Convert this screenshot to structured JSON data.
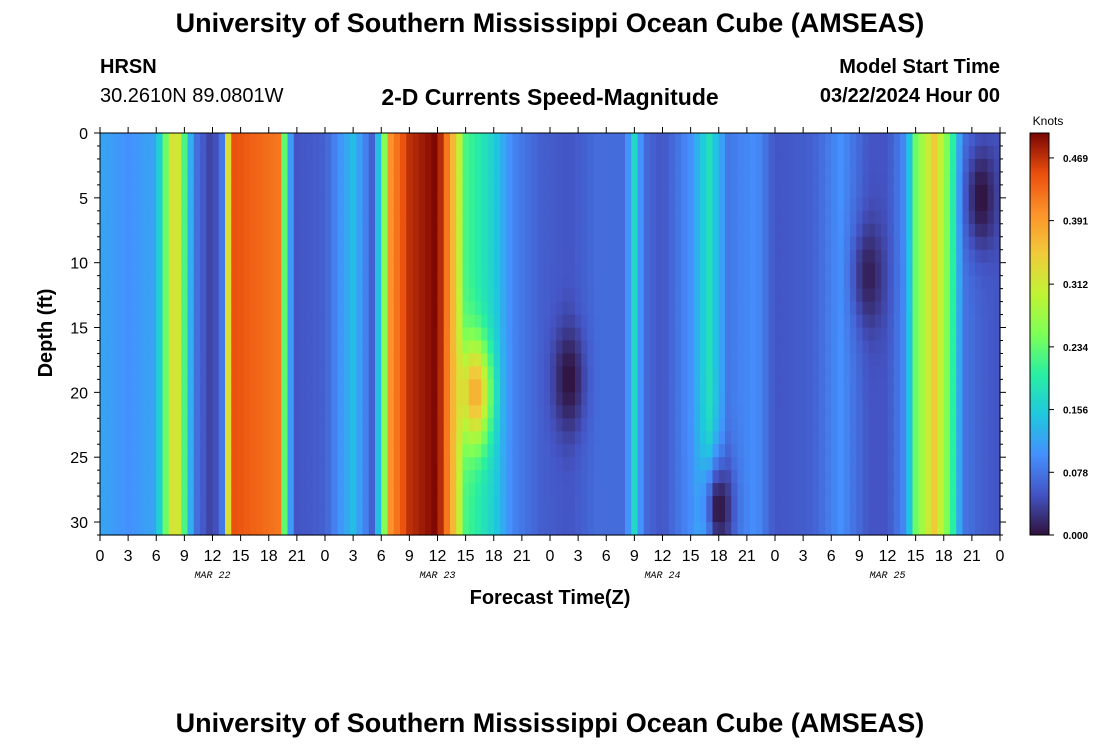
{
  "header": {
    "title": "University of Southern Mississippi Ocean Cube (AMSEAS)",
    "station": "HRSN",
    "coordinates": "30.2610N  89.0801W",
    "plot_title": "2-D Currents Speed-Magnitude",
    "model_start_label": "Model Start Time",
    "model_start_value": "03/22/2024 Hour 00"
  },
  "footer": {
    "title": "University of Southern Mississippi Ocean Cube (AMSEAS)"
  },
  "chart_data": {
    "type": "heatmap",
    "title": "2-D Currents Speed-Magnitude",
    "xlabel": "Forecast Time(Z)",
    "ylabel": "Depth (ft)",
    "x_ticks": [
      "0",
      "3",
      "6",
      "9",
      "12",
      "15",
      "18",
      "21",
      "0",
      "3",
      "6",
      "9",
      "12",
      "15",
      "18",
      "21",
      "0",
      "3",
      "6",
      "9",
      "12",
      "15",
      "18",
      "21",
      "0",
      "3",
      "6",
      "9",
      "12",
      "15",
      "18",
      "21",
      "0"
    ],
    "day_labels": [
      {
        "label": "MAR 22",
        "hour": 12
      },
      {
        "label": "MAR 23",
        "hour": 36
      },
      {
        "label": "MAR 24",
        "hour": 60
      },
      {
        "label": "MAR 25",
        "hour": 84
      }
    ],
    "xlim": [
      0,
      96
    ],
    "y_ticks": [
      "0",
      "5",
      "10",
      "15",
      "20",
      "25",
      "30"
    ],
    "ylim": [
      0,
      31
    ],
    "colorbar": {
      "label": "Knots",
      "tick_labels": [
        "0.000",
        "0.078",
        "0.156",
        "0.234",
        "0.312",
        "0.391",
        "0.469"
      ],
      "range": [
        0,
        0.5
      ]
    },
    "hour_profiles": [
      {
        "hour": 0,
        "speed": 0.12
      },
      {
        "hour": 3,
        "speed": 0.1
      },
      {
        "hour": 6,
        "speed": 0.12
      },
      {
        "hour": 8,
        "speed": 0.36
      },
      {
        "hour": 10,
        "speed": 0.08
      },
      {
        "hour": 12,
        "speed": 0.03
      },
      {
        "hour": 13,
        "speed": 0.08
      },
      {
        "hour": 14,
        "speed": 0.45
      },
      {
        "hour": 19,
        "speed": 0.42
      },
      {
        "hour": 20,
        "speed": 0.14
      },
      {
        "hour": 21,
        "speed": 0.05
      },
      {
        "hour": 24,
        "speed": 0.06
      },
      {
        "hour": 27,
        "speed": 0.14
      },
      {
        "hour": 29,
        "speed": 0.06
      },
      {
        "hour": 30,
        "speed": 0.18
      },
      {
        "hour": 31,
        "speed": 0.4
      },
      {
        "hour": 33,
        "speed": 0.47
      },
      {
        "hour": 36,
        "speed": 0.5
      },
      {
        "hour": 38,
        "speed": 0.34
      },
      {
        "hour": 39,
        "speed": 0.22
      },
      {
        "hour": 42,
        "speed": 0.16
      },
      {
        "hour": 44,
        "speed": 0.09
      },
      {
        "hour": 47,
        "speed": 0.06
      },
      {
        "hour": 50,
        "speed": 0.05
      },
      {
        "hour": 53,
        "speed": 0.07
      },
      {
        "hour": 56,
        "speed": 0.07
      },
      {
        "hour": 57,
        "speed": 0.17
      },
      {
        "hour": 58,
        "speed": 0.07
      },
      {
        "hour": 60,
        "speed": 0.05
      },
      {
        "hour": 63,
        "speed": 0.1
      },
      {
        "hour": 65,
        "speed": 0.18
      },
      {
        "hour": 67,
        "speed": 0.08
      },
      {
        "hour": 70,
        "speed": 0.1
      },
      {
        "hour": 72,
        "speed": 0.05
      },
      {
        "hour": 76,
        "speed": 0.06
      },
      {
        "hour": 79,
        "speed": 0.1
      },
      {
        "hour": 82,
        "speed": 0.05
      },
      {
        "hour": 84,
        "speed": 0.05
      },
      {
        "hour": 86,
        "speed": 0.1
      },
      {
        "hour": 87,
        "speed": 0.24
      },
      {
        "hour": 89,
        "speed": 0.35
      },
      {
        "hour": 91,
        "speed": 0.2
      },
      {
        "hour": 92,
        "speed": 0.08
      },
      {
        "hour": 94,
        "speed": 0.06
      },
      {
        "hour": 96,
        "speed": 0.05
      }
    ],
    "features": [
      {
        "hour": 40,
        "depth": 20,
        "speed": 0.38,
        "note": "subsurface max"
      },
      {
        "hour": 50,
        "depth": 19,
        "speed": 0.0,
        "note": "subsurface min"
      },
      {
        "hour": 66,
        "depth": 29,
        "speed": 0.0,
        "note": "near-bottom min"
      },
      {
        "hour": 82,
        "depth": 11,
        "speed": 0.01,
        "note": "mid-depth min"
      },
      {
        "hour": 94,
        "depth": 5,
        "speed": 0.0,
        "note": "local min"
      }
    ]
  }
}
